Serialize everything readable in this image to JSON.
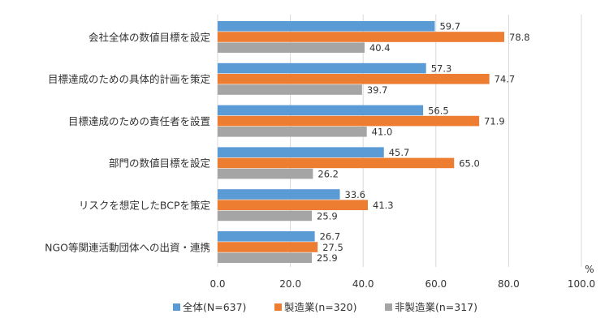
{
  "chart_data": {
    "type": "bar",
    "orientation": "horizontal",
    "categories": [
      "会社全体の数値目標を設定",
      "目標達成のための具体的計画を策定",
      "目標達成のための責任者を設置",
      "部門の数値目標を設定",
      "リスクを想定したBCPを策定",
      "NGO等関連活動団体への出資・連携"
    ],
    "series": [
      {
        "name": "全体(N=637)",
        "color": "#5b9bd5",
        "values": [
          59.7,
          57.3,
          56.5,
          45.7,
          33.6,
          26.7
        ]
      },
      {
        "name": "製造業(n=320)",
        "color": "#ed7d31",
        "values": [
          78.8,
          74.7,
          71.9,
          65.0,
          41.3,
          27.5
        ]
      },
      {
        "name": "非製造業(n=317)",
        "color": "#a5a5a5",
        "values": [
          40.4,
          39.7,
          41.0,
          26.2,
          25.9,
          25.9
        ]
      }
    ],
    "xlim": [
      0,
      100
    ],
    "xticks": [
      "0.0",
      "20.0",
      "40.0",
      "60.0",
      "80.0",
      "100.0"
    ],
    "xunit": "%",
    "grid": true,
    "legend_position": "bottom"
  }
}
